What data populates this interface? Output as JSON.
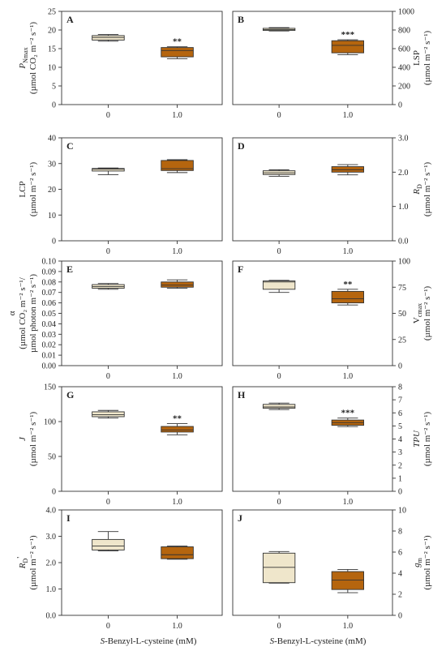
{
  "figure": {
    "xlabel_left": "S-Benzyl-L-cysteine (mM)",
    "xlabel_right": "S-Benzyl-L-cysteine (mM)",
    "colors": {
      "control_fill": "#efe6cb",
      "treated_fill": "#b5650e",
      "box_edge": "#333333"
    }
  },
  "chart_data": [
    {
      "type": "box",
      "letter": "A",
      "col": 0,
      "row": 0,
      "ylabel_main": "P",
      "ylabel_sub": "Nmax",
      "ylabel_unit": "(µmol CO₂ m⁻² s⁻¹)",
      "ylim": [
        0,
        25
      ],
      "yticks": [
        0,
        5,
        10,
        15,
        20,
        25
      ],
      "ytick_labels": [
        "0",
        "5",
        "10",
        "15",
        "20",
        "25"
      ],
      "categories": [
        "0",
        "1.0"
      ],
      "boxes": [
        {
          "fill": "control",
          "min": 17.0,
          "q1": 17.3,
          "median": 18.0,
          "q3": 18.5,
          "max": 18.8,
          "sig": ""
        },
        {
          "fill": "treated",
          "min": 12.3,
          "q1": 12.8,
          "median": 14.5,
          "q3": 15.3,
          "max": 15.5,
          "sig": "**"
        }
      ]
    },
    {
      "type": "box",
      "letter": "B",
      "col": 1,
      "row": 0,
      "ylabel_main": "LSP",
      "ylabel_sub": "",
      "ylabel_unit": "(µmol m⁻² s⁻¹)",
      "ylim": [
        0,
        1000
      ],
      "yticks": [
        0,
        200,
        400,
        600,
        800,
        1000
      ],
      "ytick_labels": [
        "0",
        "200",
        "400",
        "600",
        "800",
        "1000"
      ],
      "categories": [
        "0",
        "1.0"
      ],
      "boxes": [
        {
          "fill": "control",
          "min": 790,
          "q1": 795,
          "median": 805,
          "q3": 818,
          "max": 825,
          "sig": ""
        },
        {
          "fill": "treated",
          "min": 535,
          "q1": 555,
          "median": 635,
          "q3": 685,
          "max": 695,
          "sig": "***"
        }
      ]
    },
    {
      "type": "box",
      "letter": "C",
      "col": 0,
      "row": 1,
      "ylabel_main": "LCP",
      "ylabel_sub": "",
      "ylabel_unit": "(µmol m⁻² s⁻¹)",
      "ylim": [
        0,
        40
      ],
      "yticks": [
        0,
        10,
        20,
        30,
        40
      ],
      "ytick_labels": [
        "0",
        "10",
        "20",
        "30",
        "40"
      ],
      "categories": [
        "0",
        "1.0"
      ],
      "boxes": [
        {
          "fill": "control",
          "min": 25.7,
          "q1": 27.1,
          "median": 27.8,
          "q3": 28.1,
          "max": 28.3,
          "sig": ""
        },
        {
          "fill": "treated",
          "min": 26.5,
          "q1": 27.3,
          "median": 28.0,
          "q3": 31.2,
          "max": 31.5,
          "sig": ""
        }
      ]
    },
    {
      "type": "box",
      "letter": "D",
      "col": 1,
      "row": 1,
      "ylabel_main": "R",
      "ylabel_sub": "D",
      "ylabel_unit": "(µmol m⁻² s⁻¹)",
      "ylim": [
        0,
        3
      ],
      "yticks": [
        0,
        1,
        2,
        3
      ],
      "ytick_labels": [
        "0.0",
        "1.0",
        "2.0",
        "3.0"
      ],
      "categories": [
        "0",
        "1.0"
      ],
      "boxes": [
        {
          "fill": "control",
          "min": 1.88,
          "q1": 1.93,
          "median": 1.98,
          "q3": 2.04,
          "max": 2.07,
          "sig": ""
        },
        {
          "fill": "treated",
          "min": 1.92,
          "q1": 2.0,
          "median": 2.07,
          "q3": 2.16,
          "max": 2.22,
          "sig": ""
        }
      ]
    },
    {
      "type": "box",
      "letter": "E",
      "col": 0,
      "row": 2,
      "ylabel_main": "α",
      "ylabel_sub": "",
      "ylabel_unit": "(µmol CO₂ m⁻² s⁻¹/",
      "ylabel_unit2": "µmol photon m⁻² s⁻¹)",
      "ylim": [
        0,
        0.1
      ],
      "yticks": [
        0,
        0.01,
        0.02,
        0.03,
        0.04,
        0.05,
        0.06,
        0.07,
        0.08,
        0.09,
        0.1
      ],
      "ytick_labels": [
        "0.00",
        "0.01",
        "0.02",
        "0.03",
        "0.04",
        "0.05",
        "0.06",
        "0.07",
        "0.08",
        "0.09",
        "0.10"
      ],
      "categories": [
        "0",
        "1.0"
      ],
      "boxes": [
        {
          "fill": "control",
          "min": 0.073,
          "q1": 0.074,
          "median": 0.0755,
          "q3": 0.0775,
          "max": 0.0785,
          "sig": ""
        },
        {
          "fill": "treated",
          "min": 0.074,
          "q1": 0.075,
          "median": 0.077,
          "q3": 0.08,
          "max": 0.082,
          "sig": ""
        }
      ]
    },
    {
      "type": "box",
      "letter": "F",
      "col": 1,
      "row": 2,
      "ylabel_main": "V",
      "ylabel_sub": "cmax",
      "ylabel_unit": "(µmol m⁻² s⁻¹)",
      "ylim": [
        0,
        100
      ],
      "yticks": [
        0,
        25,
        50,
        75,
        100
      ],
      "ytick_labels": [
        "0",
        "25",
        "50",
        "75",
        "100"
      ],
      "categories": [
        "0",
        "1.0"
      ],
      "boxes": [
        {
          "fill": "control",
          "min": 70,
          "q1": 73,
          "median": 80,
          "q3": 81,
          "max": 81.5,
          "sig": ""
        },
        {
          "fill": "treated",
          "min": 58,
          "q1": 60,
          "median": 64,
          "q3": 71,
          "max": 73,
          "sig": "**"
        }
      ]
    },
    {
      "type": "box",
      "letter": "G",
      "col": 0,
      "row": 3,
      "ylabel_main": "J",
      "ylabel_sub": "",
      "ylabel_unit": "(µmol m⁻² s⁻¹)",
      "ylim": [
        0,
        150
      ],
      "yticks": [
        0,
        50,
        100,
        150
      ],
      "ytick_labels": [
        "0",
        "50",
        "100",
        "150"
      ],
      "categories": [
        "0",
        "1.0"
      ],
      "boxes": [
        {
          "fill": "control",
          "min": 105,
          "q1": 107,
          "median": 110,
          "q3": 114,
          "max": 116,
          "sig": ""
        },
        {
          "fill": "treated",
          "min": 81,
          "q1": 85,
          "median": 88,
          "q3": 93,
          "max": 97,
          "sig": "**"
        }
      ]
    },
    {
      "type": "box",
      "letter": "H",
      "col": 1,
      "row": 3,
      "ylabel_main": "TPU",
      "ylabel_sub": "",
      "ylabel_unit": "(µmol m⁻² s⁻¹)",
      "ylim": [
        0,
        8
      ],
      "yticks": [
        0,
        1,
        2,
        3,
        4,
        5,
        6,
        7,
        8
      ],
      "ytick_labels": [
        "0",
        "1",
        "2",
        "3",
        "4",
        "5",
        "6",
        "7",
        "8"
      ],
      "categories": [
        "0",
        "1.0"
      ],
      "boxes": [
        {
          "fill": "control",
          "min": 6.25,
          "q1": 6.35,
          "median": 6.45,
          "q3": 6.65,
          "max": 6.75,
          "sig": ""
        },
        {
          "fill": "treated",
          "min": 4.95,
          "q1": 5.05,
          "median": 5.25,
          "q3": 5.45,
          "max": 5.6,
          "sig": "***"
        }
      ]
    },
    {
      "type": "box",
      "letter": "I",
      "col": 0,
      "row": 4,
      "ylabel_main": "R",
      "ylabel_sub": "D",
      "ylabel_sup": "'",
      "ylabel_unit": "(µmol m⁻² s⁻¹)",
      "ylim": [
        0,
        4
      ],
      "yticks": [
        0,
        1,
        2,
        3,
        4
      ],
      "ytick_labels": [
        "0.0",
        "1.0",
        "2.0",
        "3.0",
        "4.0"
      ],
      "categories": [
        "0",
        "1.0"
      ],
      "boxes": [
        {
          "fill": "control",
          "min": 2.45,
          "q1": 2.48,
          "median": 2.63,
          "q3": 2.88,
          "max": 3.18,
          "sig": ""
        },
        {
          "fill": "treated",
          "min": 2.13,
          "q1": 2.15,
          "median": 2.3,
          "q3": 2.6,
          "max": 2.63,
          "sig": ""
        }
      ]
    },
    {
      "type": "box",
      "letter": "J",
      "col": 1,
      "row": 4,
      "ylabel_main": "g",
      "ylabel_sub": "m",
      "ylabel_unit": "(µmol m⁻² s⁻¹)",
      "ylim": [
        0,
        10
      ],
      "yticks": [
        0,
        2,
        4,
        6,
        8,
        10
      ],
      "ytick_labels": [
        "0",
        "2",
        "4",
        "6",
        "8",
        "10"
      ],
      "categories": [
        "0",
        "1.0"
      ],
      "boxes": [
        {
          "fill": "control",
          "min": 3.05,
          "q1": 3.1,
          "median": 4.55,
          "q3": 5.9,
          "max": 6.05,
          "sig": ""
        },
        {
          "fill": "treated",
          "min": 2.15,
          "q1": 2.45,
          "median": 3.35,
          "q3": 4.15,
          "max": 4.35,
          "sig": ""
        }
      ]
    }
  ]
}
